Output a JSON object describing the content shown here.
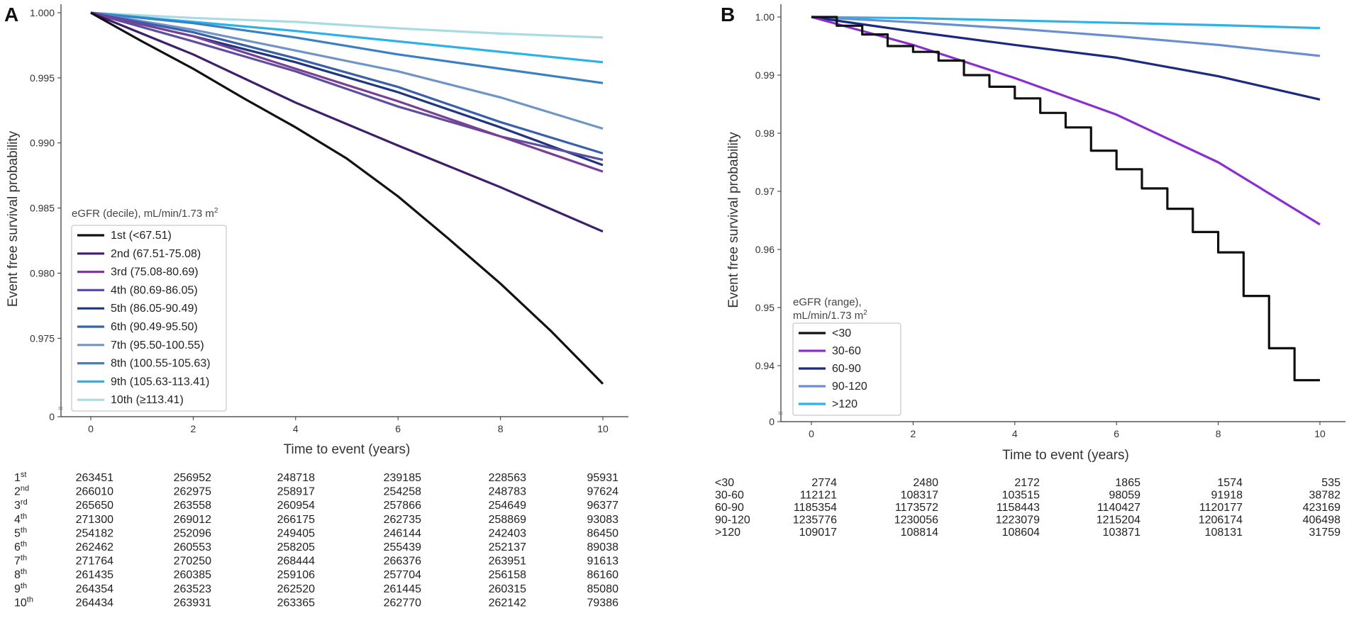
{
  "chart_data": [
    {
      "panel": "A",
      "type": "line",
      "xlabel": "Time to event (years)",
      "ylabel": "Event free survival probability",
      "xlim": [
        0,
        10
      ],
      "ylim": [
        0.9705,
        1.0
      ],
      "x_ticks": [
        0,
        2,
        4,
        6,
        8,
        10
      ],
      "y_ticks": [
        0.975,
        0.98,
        0.985,
        0.99,
        0.995,
        1.0
      ],
      "y_tick_labels": [
        "0.975",
        "0.980",
        "0.985",
        "0.990",
        "0.995",
        "1.000"
      ],
      "y_zero_label": "0",
      "legend_title": "eGFR (decile), mL/min/1.73 m",
      "legend_title_sup": "2",
      "series": [
        {
          "name": "1st (<67.51)",
          "color": "#111111",
          "x": [
            0,
            1,
            2,
            3,
            4,
            5,
            6,
            7,
            8,
            9,
            10
          ],
          "y": [
            1.0,
            0.9978,
            0.9957,
            0.9934,
            0.9912,
            0.9888,
            0.9859,
            0.9826,
            0.9792,
            0.9755,
            0.9715
          ]
        },
        {
          "name": "2nd (67.51-75.08)",
          "color": "#3d1f6b",
          "x": [
            0,
            2,
            4,
            6,
            8,
            10
          ],
          "y": [
            1.0,
            0.9968,
            0.9931,
            0.9898,
            0.9866,
            0.9832
          ]
        },
        {
          "name": "3rd (75.08-80.69)",
          "color": "#7a3f94",
          "x": [
            0,
            2,
            4,
            6,
            8,
            10
          ],
          "y": [
            1.0,
            0.9982,
            0.9957,
            0.9932,
            0.9905,
            0.9878
          ]
        },
        {
          "name": "4th (80.69-86.05)",
          "color": "#5d4ea0",
          "x": [
            0,
            2,
            4,
            6,
            8,
            10
          ],
          "y": [
            1.0,
            0.9978,
            0.9955,
            0.9928,
            0.9905,
            0.9887
          ]
        },
        {
          "name": "5th (86.05-90.49)",
          "color": "#1f3580",
          "x": [
            0,
            2,
            4,
            6,
            8,
            10
          ],
          "y": [
            1.0,
            0.9982,
            0.9962,
            0.9939,
            0.9912,
            0.9883
          ]
        },
        {
          "name": "6th (90.49-95.50)",
          "color": "#3a60ac",
          "x": [
            0,
            2,
            4,
            6,
            8,
            10
          ],
          "y": [
            1.0,
            0.9985,
            0.9965,
            0.9943,
            0.9916,
            0.9892
          ]
        },
        {
          "name": "7th (95.50-100.55)",
          "color": "#6f95c8",
          "x": [
            0,
            2,
            4,
            6,
            8,
            10
          ],
          "y": [
            1.0,
            0.9987,
            0.9971,
            0.9955,
            0.9935,
            0.9911
          ]
        },
        {
          "name": "8th (100.55-105.63)",
          "color": "#3a80c4",
          "x": [
            0,
            2,
            4,
            6,
            8,
            10
          ],
          "y": [
            1.0,
            0.9992,
            0.9981,
            0.9968,
            0.9957,
            0.9946
          ]
        },
        {
          "name": "9th (105.63-113.41)",
          "color": "#2eb0e8",
          "x": [
            0,
            2,
            4,
            6,
            8,
            10
          ],
          "y": [
            1.0,
            0.9993,
            0.9986,
            0.9978,
            0.997,
            0.9962
          ]
        },
        {
          "name": "10th (≥113.41)",
          "color": "#a9dbe5",
          "x": [
            0,
            2,
            4,
            6,
            8,
            10
          ],
          "y": [
            1.0,
            0.9996,
            0.9993,
            0.9988,
            0.9984,
            0.9981
          ]
        }
      ],
      "risk_table": {
        "rows": [
          {
            "label": "1",
            "sup": "st",
            "values": [
              "263451",
              "256952",
              "248718",
              "239185",
              "228563",
              "95931"
            ]
          },
          {
            "label": "2",
            "sup": "nd",
            "values": [
              "266010",
              "262975",
              "258917",
              "254258",
              "248783",
              "97624"
            ]
          },
          {
            "label": "3",
            "sup": "rd",
            "values": [
              "265650",
              "263558",
              "260954",
              "257866",
              "254649",
              "96377"
            ]
          },
          {
            "label": "4",
            "sup": "th",
            "values": [
              "271300",
              "269012",
              "266175",
              "262735",
              "258869",
              "93083"
            ]
          },
          {
            "label": "5",
            "sup": "th",
            "values": [
              "254182",
              "252096",
              "249405",
              "246144",
              "242403",
              "86450"
            ]
          },
          {
            "label": "6",
            "sup": "th",
            "values": [
              "262462",
              "260553",
              "258205",
              "255439",
              "252137",
              "89038"
            ]
          },
          {
            "label": "7",
            "sup": "th",
            "values": [
              "271764",
              "270250",
              "268444",
              "266376",
              "263951",
              "91613"
            ]
          },
          {
            "label": "8",
            "sup": "th",
            "values": [
              "261435",
              "260385",
              "259106",
              "257704",
              "256158",
              "86160"
            ]
          },
          {
            "label": "9",
            "sup": "th",
            "values": [
              "264354",
              "263523",
              "262520",
              "261445",
              "260315",
              "85080"
            ]
          },
          {
            "label": "10",
            "sup": "th",
            "values": [
              "264434",
              "263931",
              "263365",
              "262770",
              "262142",
              "79386"
            ]
          }
        ]
      }
    },
    {
      "panel": "B",
      "type": "line",
      "xlabel": "Time to event (years)",
      "ylabel": "Event free survival probability",
      "xlim": [
        0,
        10
      ],
      "ylim": [
        0.935,
        1.0
      ],
      "x_ticks": [
        0,
        2,
        4,
        6,
        8,
        10
      ],
      "y_ticks": [
        0.94,
        0.95,
        0.96,
        0.97,
        0.98,
        0.99,
        1.0
      ],
      "y_tick_labels": [
        "0.94",
        "0.95",
        "0.96",
        "0.97",
        "0.98",
        "0.99",
        "1.00"
      ],
      "y_zero_label": "0",
      "legend_title_line1": "eGFR (range),",
      "legend_title_line2": "mL/min/1.73 m",
      "legend_title_sup": "2",
      "series": [
        {
          "name": "<30",
          "color": "#111111",
          "x": [
            0,
            0.5,
            1,
            1.5,
            2,
            2.5,
            3,
            3.5,
            4,
            4.5,
            5,
            5.5,
            6,
            6.5,
            7,
            7.5,
            8,
            8.5,
            9,
            9.5,
            10
          ],
          "y": [
            1.0,
            0.9985,
            0.997,
            0.995,
            0.994,
            0.9925,
            0.99,
            0.988,
            0.986,
            0.9835,
            0.981,
            0.977,
            0.9738,
            0.9705,
            0.967,
            0.963,
            0.9595,
            0.952,
            0.943,
            0.9375,
            0.9375
          ]
        },
        {
          "name": "30-60",
          "color": "#8a2ed1",
          "x": [
            0,
            2,
            4,
            6,
            8,
            10
          ],
          "y": [
            1.0,
            0.9952,
            0.9895,
            0.9832,
            0.975,
            0.9643
          ]
        },
        {
          "name": "60-90",
          "color": "#1a2a80",
          "x": [
            0,
            2,
            4,
            6,
            8,
            10
          ],
          "y": [
            1.0,
            0.9975,
            0.9952,
            0.993,
            0.9898,
            0.9858
          ]
        },
        {
          "name": "90-120",
          "color": "#6a8fd0",
          "x": [
            0,
            2,
            4,
            6,
            8,
            10
          ],
          "y": [
            1.0,
            0.9991,
            0.998,
            0.9967,
            0.9952,
            0.9933
          ]
        },
        {
          "name": ">120",
          "color": "#2eb0e8",
          "x": [
            0,
            2,
            4,
            6,
            8,
            10
          ],
          "y": [
            1.0,
            0.9998,
            0.9994,
            0.999,
            0.9986,
            0.9981
          ]
        }
      ],
      "risk_table": {
        "rows": [
          {
            "label": "<30",
            "values": [
              "2774",
              "2480",
              "2172",
              "1865",
              "1574",
              "535"
            ]
          },
          {
            "label": "30-60",
            "values": [
              "112121",
              "108317",
              "103515",
              "98059",
              "91918",
              "38782"
            ]
          },
          {
            "label": "60-90",
            "values": [
              "1185354",
              "1173572",
              "1158443",
              "1140427",
              "1120177",
              "423169"
            ]
          },
          {
            "label": "90-120",
            "values": [
              "1235776",
              "1230056",
              "1223079",
              "1215204",
              "1206174",
              "406498"
            ]
          },
          {
            "label": ">120",
            "values": [
              "109017",
              "108814",
              "108604",
              "103871",
              "108131",
              "31759"
            ]
          }
        ]
      }
    }
  ]
}
